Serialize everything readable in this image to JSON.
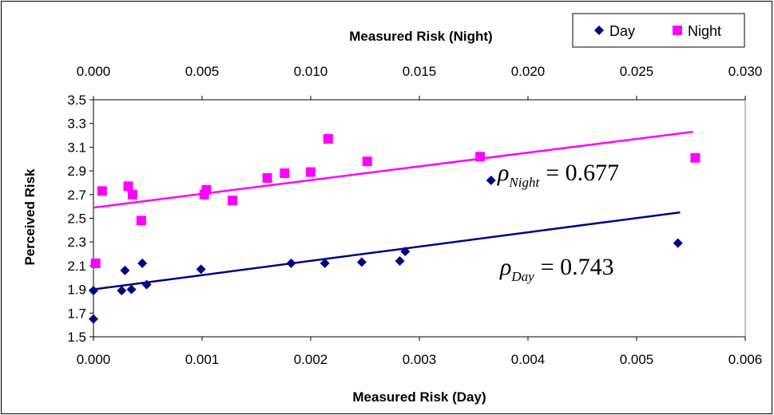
{
  "chart_data": {
    "type": "scatter",
    "x_bottom": {
      "label": "Measured Risk (Day)",
      "ticks": [
        "0.000",
        "0.001",
        "0.002",
        "0.003",
        "0.004",
        "0.005",
        "0.006"
      ],
      "range": [
        0,
        0.006
      ]
    },
    "x_top": {
      "label": "Measured Risk (Night)",
      "ticks": [
        "0.000",
        "0.005",
        "0.010",
        "0.015",
        "0.020",
        "0.025",
        "0.030"
      ],
      "range": [
        0,
        0.03
      ]
    },
    "y": {
      "label": "Perceived Risk",
      "ticks": [
        "1.5",
        "1.7",
        "1.9",
        "2.1",
        "2.3",
        "2.5",
        "2.7",
        "2.9",
        "3.1",
        "3.3",
        "3.5"
      ],
      "range": [
        1.5,
        3.5
      ]
    },
    "grid": false,
    "legend_position": "top-right",
    "series": [
      {
        "name": "Day",
        "axis": "bottom",
        "marker": "diamond",
        "color": "#000080",
        "points": [
          [
            0.0,
            1.89
          ],
          [
            0.0,
            1.65
          ],
          [
            0.00026,
            1.89
          ],
          [
            0.00029,
            2.06
          ],
          [
            0.00035,
            1.9
          ],
          [
            0.00045,
            2.12
          ],
          [
            0.00049,
            1.94
          ],
          [
            0.00099,
            2.07
          ],
          [
            0.00182,
            2.12
          ],
          [
            0.00213,
            2.12
          ],
          [
            0.00247,
            2.13
          ],
          [
            0.00282,
            2.14
          ],
          [
            0.00287,
            2.22
          ],
          [
            0.00366,
            2.82
          ],
          [
            0.00538,
            2.29
          ]
        ],
        "trend": [
          [
            0.0,
            1.9
          ],
          [
            0.0054,
            2.55
          ]
        ],
        "annotation": {
          "symbol": "ρ",
          "subscript": "Day",
          "value": "= 0.743"
        }
      },
      {
        "name": "Night",
        "axis": "top",
        "marker": "square",
        "color": "#ff00ff",
        "points": [
          [
            0.0001,
            2.12
          ],
          [
            0.0004,
            2.73
          ],
          [
            0.0016,
            2.77
          ],
          [
            0.0018,
            2.7
          ],
          [
            0.0022,
            2.48
          ],
          [
            0.0051,
            2.7
          ],
          [
            0.0052,
            2.74
          ],
          [
            0.0064,
            2.65
          ],
          [
            0.008,
            2.84
          ],
          [
            0.0088,
            2.88
          ],
          [
            0.01,
            2.89
          ],
          [
            0.0108,
            3.17
          ],
          [
            0.0126,
            2.98
          ],
          [
            0.0178,
            3.02
          ],
          [
            0.0277,
            3.01
          ]
        ],
        "trend": [
          [
            0.0,
            2.59
          ],
          [
            0.0276,
            3.23
          ]
        ],
        "annotation": {
          "symbol": "ρ",
          "subscript": "Night",
          "value": "= 0.677"
        }
      }
    ]
  }
}
